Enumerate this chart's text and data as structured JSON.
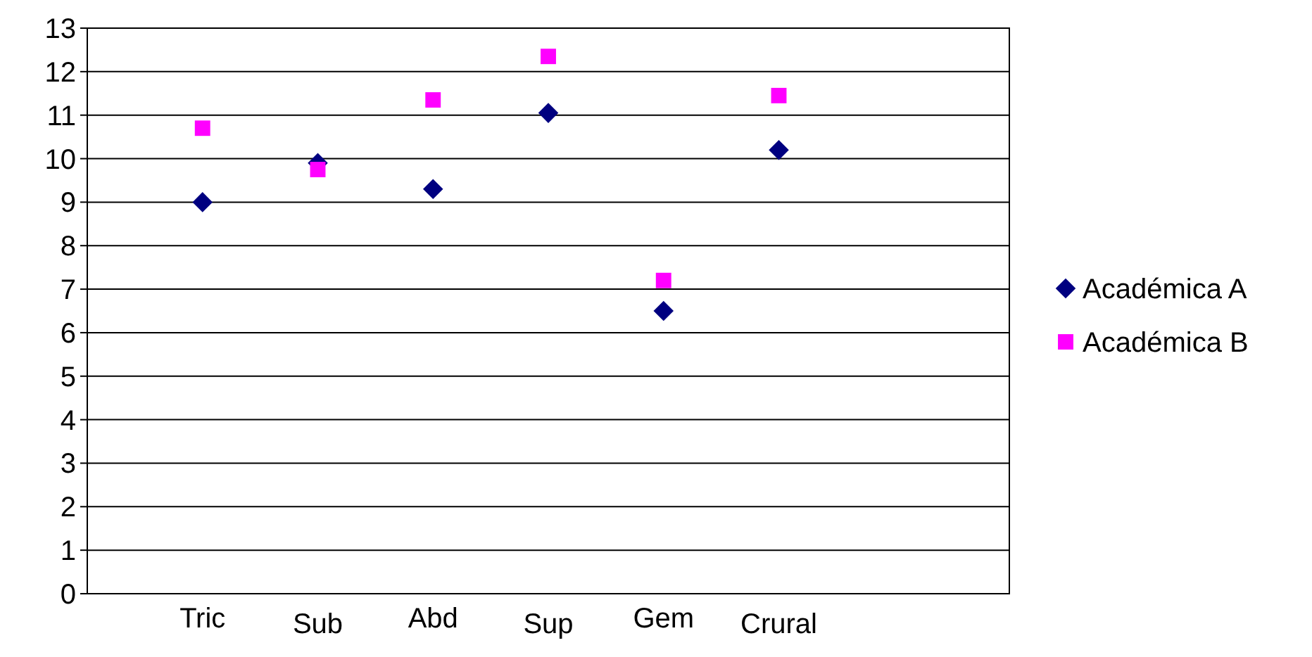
{
  "chart_data": {
    "type": "scatter",
    "categories": [
      "Tric",
      "Sub",
      "Abd",
      "Sup",
      "Gem",
      "Crural"
    ],
    "series": [
      {
        "name": "Académica A",
        "color": "#000080",
        "marker": "diamond",
        "values": [
          9.0,
          9.9,
          9.3,
          11.05,
          6.5,
          10.2
        ]
      },
      {
        "name": "Académica B",
        "color": "#ff00ff",
        "marker": "square",
        "values": [
          10.7,
          9.75,
          11.35,
          12.35,
          7.2,
          11.45
        ]
      }
    ],
    "ylim": [
      0,
      13
    ],
    "yticks": [
      0,
      1,
      2,
      3,
      4,
      5,
      6,
      7,
      8,
      9,
      10,
      11,
      12,
      13
    ],
    "grid": "y",
    "legend": "right"
  }
}
